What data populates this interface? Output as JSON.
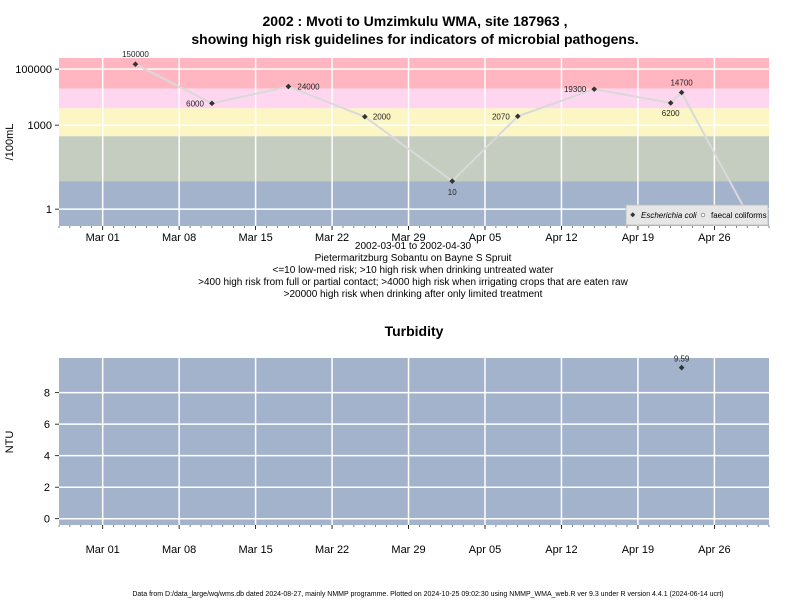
{
  "page": {
    "title_line1": "2002 : Mvoti to Umzimkulu WMA, site 187963 ,",
    "title_line2": "showing high risk guidelines for indicators of microbial pathogens.",
    "info_lines": [
      "2002-03-01 to 2002-04-30",
      "Pietermaritzburg Sobantu on Bayne S Spruit",
      "<=10 low-med risk; >10 high risk when drinking untreated water",
      ">400 high risk from full or partial contact; >4000 high risk when irrigating crops that are eaten raw",
      ">20000 high risk when drinking after only limited treatment"
    ],
    "footer": "Data from D:/data_large/wq/wms.db dated 2024-08-27, mainly NMMP programme. Plotted on 2024-10-25 09:02:30 using NMMP_WMA_web.R ver 9.3 under R version 4.4.1 (2024-06-14 ucrt)"
  },
  "colors": {
    "band_red": "#ffb6c1",
    "band_pink": "#ffd6f0",
    "band_yellow": "#fbf6c4",
    "band_green": "#c4cdc0",
    "band_blue": "#a3b3cb",
    "grid": "#ffffff",
    "line": "#d9d9d9",
    "marker": "#333333"
  },
  "chart_data": [
    {
      "type": "line",
      "title": "",
      "ylabel": "/100mL",
      "y_scale": "log",
      "ylim": [
        0.25,
        250000
      ],
      "xlim": [
        "2002-02-25",
        "2002-05-01"
      ],
      "x_ticks": [
        {
          "date": "2002-03-01",
          "label": "Mar 01"
        },
        {
          "date": "2002-03-08",
          "label": "Mar 08"
        },
        {
          "date": "2002-03-15",
          "label": "Mar 15"
        },
        {
          "date": "2002-03-22",
          "label": "Mar 22"
        },
        {
          "date": "2002-03-29",
          "label": "Mar 29"
        },
        {
          "date": "2002-04-05",
          "label": "Apr 05"
        },
        {
          "date": "2002-04-12",
          "label": "Apr 12"
        },
        {
          "date": "2002-04-19",
          "label": "Apr 19"
        },
        {
          "date": "2002-04-26",
          "label": "Apr 26"
        }
      ],
      "y_ticks": [
        {
          "value": 1,
          "label": "1"
        },
        {
          "value": 1000,
          "label": "1000"
        },
        {
          "value": 100000,
          "label": "100000"
        }
      ],
      "risk_bands": [
        {
          "from": 20000,
          "to": 250000,
          "color": "band_red"
        },
        {
          "from": 4000,
          "to": 20000,
          "color": "band_pink"
        },
        {
          "from": 400,
          "to": 4000,
          "color": "band_yellow"
        },
        {
          "from": 10,
          "to": 400,
          "color": "band_green"
        },
        {
          "from": 0.25,
          "to": 10,
          "color": "band_blue"
        }
      ],
      "legend_position": "bottom-right",
      "legend": [
        "Escherichia coli",
        "faecal coliforms"
      ],
      "series": [
        {
          "name": "Escherichia coli",
          "points": [
            {
              "date": "2002-03-04",
              "value": 150000,
              "label": "150000"
            },
            {
              "date": "2002-03-11",
              "value": 6000,
              "label": "6000"
            },
            {
              "date": "2002-03-18",
              "value": 24000,
              "label": "24000"
            },
            {
              "date": "2002-03-25",
              "value": 2000,
              "label": "2000"
            },
            {
              "date": "2002-04-02",
              "value": 10,
              "label": "10"
            },
            {
              "date": "2002-04-08",
              "value": 2070,
              "label": "2070"
            },
            {
              "date": "2002-04-15",
              "value": 19300,
              "label": "19300"
            },
            {
              "date": "2002-04-22",
              "value": 6200,
              "label": "6200"
            },
            {
              "date": "2002-04-23",
              "value": 14700,
              "label": "14700"
            },
            {
              "date": "2002-04-29",
              "value": 0.7,
              "label": ""
            }
          ]
        }
      ]
    },
    {
      "type": "scatter",
      "title": "Turbidity",
      "ylabel": "NTU",
      "ylim": [
        -0.4,
        10.2
      ],
      "xlim": [
        "2002-02-25",
        "2002-05-01"
      ],
      "y_ticks": [
        {
          "value": 0,
          "label": "0"
        },
        {
          "value": 2,
          "label": "2"
        },
        {
          "value": 4,
          "label": "4"
        },
        {
          "value": 6,
          "label": "6"
        },
        {
          "value": 8,
          "label": "8"
        }
      ],
      "x_ticks": [
        {
          "date": "2002-03-01",
          "label": "Mar 01"
        },
        {
          "date": "2002-03-08",
          "label": "Mar 08"
        },
        {
          "date": "2002-03-15",
          "label": "Mar 15"
        },
        {
          "date": "2002-03-22",
          "label": "Mar 22"
        },
        {
          "date": "2002-03-29",
          "label": "Mar 29"
        },
        {
          "date": "2002-04-05",
          "label": "Apr 05"
        },
        {
          "date": "2002-04-12",
          "label": "Apr 12"
        },
        {
          "date": "2002-04-19",
          "label": "Apr 19"
        },
        {
          "date": "2002-04-26",
          "label": "Apr 26"
        }
      ],
      "series": [
        {
          "points": [
            {
              "date": "2002-04-23",
              "value": 9.59,
              "label": "9.59"
            }
          ]
        }
      ]
    }
  ]
}
